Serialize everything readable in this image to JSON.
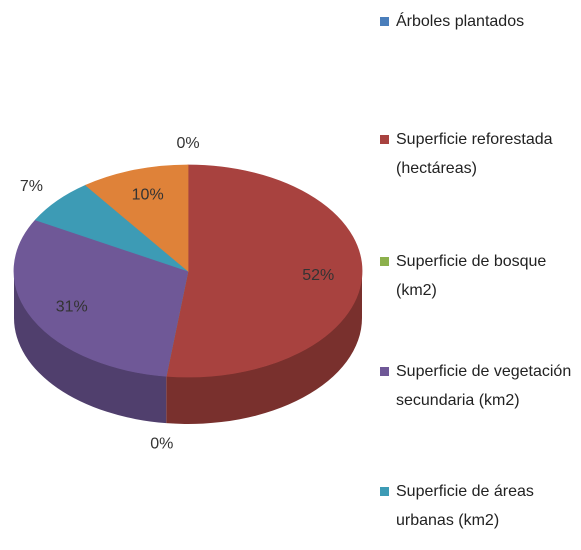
{
  "chart_data": {
    "type": "pie3d",
    "categories": [
      "Árboles plantados",
      "Superficie reforestada (hectáreas)",
      "Superficie de bosque (km2)",
      "Superficie de vegetación secundaria (km2)",
      "Superficie de áreas urbanas (km2)",
      null
    ],
    "values": [
      0,
      52,
      0,
      31,
      7,
      10
    ],
    "value_labels": [
      "0%",
      "52%",
      "0%",
      "31%",
      "7%",
      "10%"
    ],
    "colors": [
      "#4a7ebb",
      "#a8423f",
      "#8cb04c",
      "#6f5897",
      "#3d9bb5",
      "#df8239"
    ]
  }
}
